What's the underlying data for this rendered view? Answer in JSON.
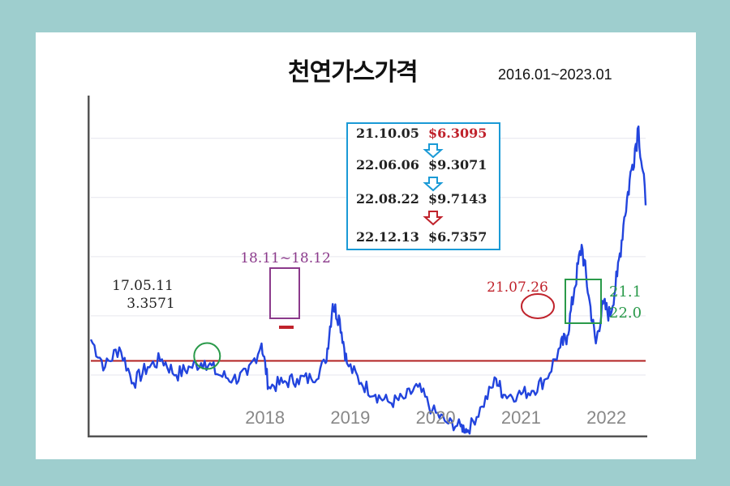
{
  "page": {
    "title": "천연가스가격",
    "date_range": "2016.01~2023.01"
  },
  "chart_data": {
    "type": "line",
    "title": "천연가스가격",
    "subtitle": "2016.01~2023.01",
    "xlabel": "",
    "ylabel": "",
    "x_ticks": [
      "2018",
      "2019",
      "2020",
      "2021",
      "2022"
    ],
    "xlim": [
      "2016-01",
      "2022-07"
    ],
    "ylim": [
      1.5,
      10.0
    ],
    "reference_line": {
      "value": 3.3571,
      "color": "#b22222"
    },
    "series": [
      {
        "color": "#2244dd",
        "points": [
          [
            "2016-01",
            3.9
          ],
          [
            "2016-03",
            3.2
          ],
          [
            "2016-05",
            3.7
          ],
          [
            "2016-07",
            2.8
          ],
          [
            "2016-09",
            3.2
          ],
          [
            "2016-11",
            3.4
          ],
          [
            "2017-01",
            3.0
          ],
          [
            "2017-03",
            3.2
          ],
          [
            "2017-05",
            3.36
          ],
          [
            "2017-07",
            3.0
          ],
          [
            "2017-09",
            2.9
          ],
          [
            "2017-11",
            3.0
          ],
          [
            "2018-01",
            3.8
          ],
          [
            "2018-02",
            2.7
          ],
          [
            "2018-04",
            2.8
          ],
          [
            "2018-06",
            2.9
          ],
          [
            "2018-08",
            2.9
          ],
          [
            "2018-10",
            3.3
          ],
          [
            "2018-11",
            4.8
          ],
          [
            "2018-12",
            4.4
          ],
          [
            "2019-01",
            3.3
          ],
          [
            "2019-03",
            2.8
          ],
          [
            "2019-05",
            2.5
          ],
          [
            "2019-07",
            2.3
          ],
          [
            "2019-09",
            2.4
          ],
          [
            "2019-11",
            2.7
          ],
          [
            "2020-01",
            2.1
          ],
          [
            "2020-03",
            1.8
          ],
          [
            "2020-05",
            1.7
          ],
          [
            "2020-06",
            1.6
          ],
          [
            "2020-08",
            2.2
          ],
          [
            "2020-10",
            2.9
          ],
          [
            "2020-11",
            2.5
          ],
          [
            "2021-01",
            2.5
          ],
          [
            "2021-03",
            2.6
          ],
          [
            "2021-05",
            2.9
          ],
          [
            "2021-07",
            3.7
          ],
          [
            "2021-08",
            4.0
          ],
          [
            "2021-09",
            5.2
          ],
          [
            "2021-10",
            6.3
          ],
          [
            "2021-11",
            5.0
          ],
          [
            "2021-12",
            3.8
          ],
          [
            "2022-01",
            4.8
          ],
          [
            "2022-02",
            4.5
          ],
          [
            "2022-03",
            5.5
          ],
          [
            "2022-04",
            7.0
          ],
          [
            "2022-05",
            8.2
          ],
          [
            "2022-06",
            9.3
          ],
          [
            "2022-07",
            7.3
          ]
        ]
      }
    ],
    "annotations": [
      {
        "label": "17.05.11",
        "value_label": "3.3571",
        "marker": "green-circle",
        "color": "#2a9a4a"
      },
      {
        "label": "18.11~18.12",
        "marker": "purple-rect",
        "color": "#8b3a8b"
      },
      {
        "label": "21.07.26",
        "marker": "red-ellipse",
        "color": "#c0232c"
      },
      {
        "label": "21.1",
        "value_label": "22.0",
        "marker": "green-rect",
        "color": "#2a9a4a"
      }
    ],
    "info_box": {
      "border_color": "#1a9ad6",
      "rows": [
        {
          "date": "21.10.05",
          "price": "$6.3095",
          "price_color": "#c0232c"
        },
        {
          "date": "22.06.06",
          "price": "$9.3071",
          "price_color": "#222222"
        },
        {
          "date": "22.08.22",
          "price": "$9.7143",
          "price_color": "#222222"
        },
        {
          "date": "22.12.13",
          "price": "$6.7357",
          "price_color": "#222222"
        }
      ],
      "arrows": [
        {
          "direction": "down",
          "color": "#1a9ad6"
        },
        {
          "direction": "down",
          "color": "#1a9ad6"
        },
        {
          "direction": "down",
          "color": "#c0232c"
        }
      ]
    }
  }
}
